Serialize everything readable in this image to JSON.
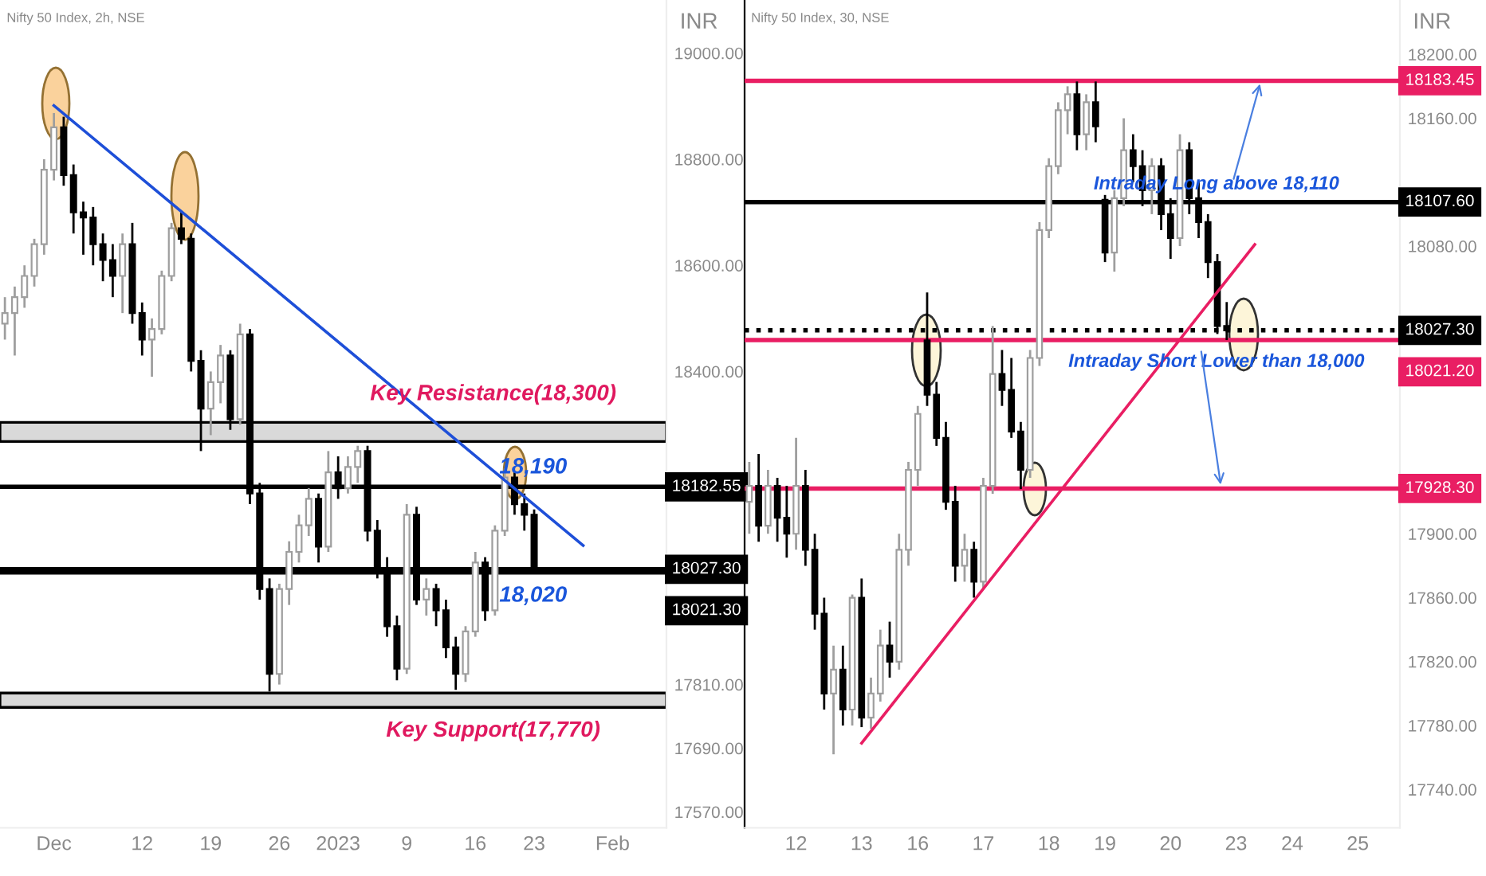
{
  "chart_data": [
    {
      "type": "candlestick",
      "title": "Nifty 50 Index, 2h, NSE",
      "ylabel": "INR",
      "categories": [
        null,
        null,
        null,
        null,
        null,
        "Dec",
        null,
        null,
        null,
        null,
        null,
        null,
        null,
        null,
        "12",
        null,
        null,
        null,
        null,
        null,
        null,
        "19",
        null,
        null,
        null,
        null,
        null,
        null,
        "26",
        null,
        null,
        null,
        null,
        null,
        "2023",
        null,
        null,
        null,
        null,
        null,
        null,
        "9",
        null,
        null,
        null,
        null,
        null,
        null,
        "16",
        null,
        null,
        null,
        null,
        null,
        "23",
        null,
        null,
        null,
        null,
        null,
        null,
        null,
        "Feb",
        null,
        null,
        null,
        null,
        null
      ],
      "ohlc": [
        [
          18490,
          18540,
          18460,
          18510
        ],
        [
          18510,
          18560,
          18430,
          18540
        ],
        [
          18540,
          18600,
          18520,
          18580
        ],
        [
          18580,
          18650,
          18560,
          18640
        ],
        [
          18640,
          18800,
          18620,
          18780
        ],
        [
          18780,
          18887,
          18760,
          18860
        ],
        [
          18860,
          18880,
          18750,
          18770
        ],
        [
          18770,
          18790,
          18660,
          18700
        ],
        [
          18700,
          18720,
          18620,
          18690
        ],
        [
          18690,
          18710,
          18600,
          18640
        ],
        [
          18640,
          18660,
          18570,
          18610
        ],
        [
          18610,
          18640,
          18540,
          18580
        ],
        [
          18580,
          18660,
          18510,
          18640
        ],
        [
          18640,
          18680,
          18490,
          18510
        ],
        [
          18510,
          18530,
          18430,
          18460
        ],
        [
          18460,
          18500,
          18390,
          18480
        ],
        [
          18480,
          18590,
          18470,
          18580
        ],
        [
          18580,
          18680,
          18570,
          18670
        ],
        [
          18670,
          18700,
          18640,
          18650
        ],
        [
          18650,
          18660,
          18400,
          18420
        ],
        [
          18420,
          18440,
          18250,
          18330
        ],
        [
          18330,
          18400,
          18280,
          18380
        ],
        [
          18380,
          18450,
          18340,
          18430
        ],
        [
          18430,
          18440,
          18290,
          18310
        ],
        [
          18310,
          18490,
          18300,
          18470
        ],
        [
          18470,
          18480,
          18150,
          18170
        ],
        [
          18170,
          18190,
          17970,
          17990
        ],
        [
          17990,
          18010,
          17797,
          17830
        ],
        [
          17830,
          18000,
          17810,
          17990
        ],
        [
          17990,
          18080,
          17960,
          18060
        ],
        [
          18060,
          18130,
          18040,
          18110
        ],
        [
          18110,
          18180,
          18090,
          18160
        ],
        [
          18160,
          18170,
          18040,
          18070
        ],
        [
          18070,
          18250,
          18060,
          18210
        ],
        [
          18210,
          18240,
          18160,
          18180
        ],
        [
          18180,
          18240,
          18170,
          18220
        ],
        [
          18220,
          18260,
          18190,
          18250
        ],
        [
          18250,
          18260,
          18080,
          18100
        ],
        [
          18100,
          18120,
          18010,
          18030
        ],
        [
          18030,
          18050,
          17900,
          17920
        ],
        [
          17920,
          17940,
          17818,
          17840
        ],
        [
          17840,
          18150,
          17830,
          18130
        ],
        [
          18130,
          18145,
          17960,
          17970
        ],
        [
          17970,
          18010,
          17940,
          17990
        ],
        [
          17990,
          18000,
          17920,
          17950
        ],
        [
          17950,
          17970,
          17860,
          17880
        ],
        [
          17880,
          17900,
          17800,
          17830
        ],
        [
          17830,
          17920,
          17815,
          17910
        ],
        [
          17910,
          18060,
          17900,
          18040
        ],
        [
          18040,
          18050,
          17930,
          17950
        ],
        [
          17950,
          18110,
          17940,
          18100
        ],
        [
          18100,
          18217,
          18090,
          18200
        ],
        [
          18200,
          18210,
          18130,
          18150
        ],
        [
          18150,
          18170,
          18100,
          18130
        ],
        [
          18130,
          18140,
          18020,
          18027.3
        ],
        null,
        null,
        null,
        null,
        null,
        null,
        null,
        null,
        null,
        null,
        null,
        null,
        null
      ],
      "series": [
        {
          "type": "line",
          "color": "#1e4fd8",
          "values": [
            null,
            null,
            null,
            null,
            null,
            18901,
            null,
            null,
            null,
            null,
            null,
            null,
            null,
            null,
            null,
            null,
            null,
            null,
            null,
            null,
            null,
            null,
            null,
            null,
            null,
            null,
            null,
            null,
            null,
            null,
            null,
            null,
            null,
            null,
            null,
            null,
            null,
            null,
            null,
            null,
            null,
            null,
            null,
            null,
            null,
            null,
            null,
            null,
            null,
            null,
            null,
            null,
            null,
            null,
            null,
            null,
            null,
            null,
            null,
            18072,
            null,
            null,
            null,
            null,
            null,
            null,
            null,
            null
          ]
        }
      ],
      "ylim": [
        17540,
        19100
      ],
      "yticks": [
        {
          "value": 19000,
          "label": "19000.00"
        },
        {
          "value": 18800,
          "label": "18800.00"
        },
        {
          "value": 18600,
          "label": "18600.00"
        },
        {
          "value": 18400,
          "label": "18400.00"
        },
        {
          "value": 17810,
          "label": "17810.00"
        },
        {
          "value": 17690,
          "label": "17690.00"
        },
        {
          "value": 17570,
          "label": "17570.00"
        }
      ],
      "ref_lines": [
        {
          "axis": "y",
          "value": 18182.55,
          "label": "18182.55",
          "color": "#000000"
        },
        {
          "axis": "y",
          "value": 18027.3,
          "label": "18027.30",
          "color": "#000000"
        },
        {
          "axis": "y",
          "value": 18021.3,
          "label": "18021.30",
          "color": "#000000"
        }
      ],
      "bands": [
        {
          "axis": "y",
          "from": 18268,
          "to": 18304,
          "label": "Key Resistance(18,300)",
          "color": "#d9d9d9"
        },
        {
          "axis": "y",
          "from": 17767,
          "to": 17794,
          "label": "Key Support(17,770)",
          "color": "#d9d9d9"
        }
      ],
      "annotations": [
        {
          "text": "18,190",
          "y": 18182.55
        },
        {
          "text": "18,020",
          "y": 18021.3
        }
      ]
    },
    {
      "type": "candlestick",
      "title": "Nifty 50 Index, 30, NSE",
      "ylabel": "INR",
      "categories": [
        null,
        null,
        null,
        null,
        null,
        "12",
        null,
        null,
        null,
        null,
        null,
        null,
        "13",
        null,
        null,
        null,
        null,
        null,
        "16",
        null,
        null,
        null,
        null,
        null,
        null,
        "17",
        null,
        null,
        null,
        null,
        null,
        null,
        "18",
        null,
        null,
        null,
        null,
        null,
        "19",
        null,
        null,
        null,
        null,
        null,
        null,
        "20",
        null,
        null,
        null,
        null,
        null,
        null,
        "23",
        null,
        null,
        null,
        null,
        null,
        "24",
        null,
        null,
        null,
        null,
        null,
        null,
        "25",
        null,
        null,
        null,
        null
      ],
      "ohlc": [
        [
          17920,
          17945,
          17900,
          17930
        ],
        [
          17930,
          17950,
          17895,
          17905
        ],
        [
          17905,
          17940,
          17900,
          17930
        ],
        [
          17930,
          17935,
          17895,
          17910
        ],
        [
          17910,
          17930,
          17885,
          17900
        ],
        [
          17900,
          17960,
          17890,
          17930
        ],
        [
          17930,
          17940,
          17880,
          17890
        ],
        [
          17890,
          17900,
          17840,
          17850
        ],
        [
          17850,
          17860,
          17790,
          17800
        ],
        [
          17800,
          17830,
          17762,
          17815
        ],
        [
          17815,
          17830,
          17780,
          17790
        ],
        [
          17790,
          17862,
          17780,
          17860
        ],
        [
          17860,
          17872,
          17779,
          17785
        ],
        [
          17785,
          17810,
          17778,
          17800
        ],
        [
          17800,
          17840,
          17795,
          17830
        ],
        [
          17830,
          17845,
          17810,
          17820
        ],
        [
          17820,
          17900,
          17815,
          17890
        ],
        [
          17890,
          17945,
          17880,
          17940
        ],
        [
          17940,
          17980,
          17930,
          17975
        ],
        [
          18021,
          18051,
          17980,
          17987
        ],
        [
          17987,
          17995,
          17955,
          17960
        ],
        [
          17960,
          17970,
          17915,
          17920
        ],
        [
          17920,
          17930,
          17870,
          17880
        ],
        [
          17880,
          17900,
          17870,
          17890
        ],
        [
          17890,
          17895,
          17860,
          17870
        ],
        [
          17870,
          17935,
          17865,
          17930
        ],
        [
          17930,
          18030,
          17925,
          18000
        ],
        [
          18000,
          18015,
          17980,
          17990
        ],
        [
          17990,
          18010,
          17960,
          17964
        ],
        [
          17964,
          17970,
          17928,
          17940
        ],
        [
          17940,
          18015,
          17935,
          18010
        ],
        [
          18010,
          18095,
          18005,
          18090
        ],
        [
          18090,
          18135,
          18085,
          18130
        ],
        [
          18130,
          18170,
          18125,
          18165
        ],
        [
          18165,
          18180,
          18150,
          18175
        ],
        [
          18175,
          18183,
          18140,
          18150
        ],
        [
          18150,
          18175,
          18140,
          18170
        ],
        [
          18170,
          18183,
          18145,
          18155
        ],
        [
          18109,
          18112,
          18070,
          18076
        ],
        [
          18076,
          18115,
          18064,
          18110
        ],
        [
          18110,
          18160,
          18105,
          18140
        ],
        [
          18140,
          18150,
          18120,
          18130
        ],
        [
          18130,
          18140,
          18105,
          18115
        ],
        [
          18115,
          18135,
          18100,
          18130
        ],
        [
          18130,
          18135,
          18090,
          18100
        ],
        [
          18100,
          18110,
          18072,
          18085
        ],
        [
          18085,
          18150,
          18080,
          18140
        ],
        [
          18140,
          18145,
          18100,
          18110
        ],
        [
          18110,
          18120,
          18085,
          18095
        ],
        [
          18095,
          18100,
          18060,
          18070
        ],
        [
          18070,
          18075,
          18025,
          18030
        ],
        [
          18030,
          18045,
          18021.2,
          18027.3
        ],
        null,
        null,
        null,
        null,
        null,
        null,
        null,
        null,
        null,
        null,
        null,
        null,
        null,
        null,
        null,
        null,
        null,
        null
      ],
      "series": [
        {
          "type": "line",
          "color": "#e91e63",
          "values": [
            null,
            null,
            null,
            null,
            null,
            null,
            null,
            null,
            null,
            null,
            null,
            null,
            17769,
            null,
            null,
            null,
            null,
            null,
            null,
            null,
            null,
            null,
            null,
            null,
            null,
            null,
            null,
            null,
            null,
            null,
            null,
            null,
            null,
            null,
            null,
            null,
            null,
            null,
            null,
            null,
            null,
            null,
            null,
            null,
            null,
            null,
            null,
            null,
            null,
            null,
            null,
            null,
            null,
            null,
            18081,
            null,
            null,
            null,
            null,
            null,
            null,
            null,
            null,
            null,
            null,
            null,
            null,
            null,
            null,
            null
          ]
        }
      ],
      "ylim": [
        17716,
        18234
      ],
      "yticks": [
        {
          "value": 18200,
          "label": "18200.00"
        },
        {
          "value": 18160,
          "label": "18160.00"
        },
        {
          "value": 18080,
          "label": "18080.00"
        },
        {
          "value": 17900,
          "label": "17900.00"
        },
        {
          "value": 17860,
          "label": "17860.00"
        },
        {
          "value": 17820,
          "label": "17820.00"
        },
        {
          "value": 17780,
          "label": "17780.00"
        },
        {
          "value": 17740,
          "label": "17740.00"
        }
      ],
      "ref_lines": [
        {
          "axis": "y",
          "value": 18183.45,
          "label": "18183.45",
          "color": "#e91e63"
        },
        {
          "axis": "y",
          "value": 18107.6,
          "label": "18107.60",
          "color": "#000000"
        },
        {
          "axis": "y",
          "value": 18027.3,
          "label": "18027.30",
          "color": "#000000",
          "line_style": "dotted"
        },
        {
          "axis": "y",
          "value": 18021.2,
          "label": "18021.20",
          "color": "#e91e63"
        },
        {
          "axis": "y",
          "value": 17928.3,
          "label": "17928.30",
          "color": "#e91e63"
        }
      ],
      "annotations": [
        {
          "text": "Intraday Long above 18,110",
          "y": 18107.6
        },
        {
          "text": "Intraday Short Lower than 18,000",
          "y": 18021.2
        }
      ]
    }
  ]
}
